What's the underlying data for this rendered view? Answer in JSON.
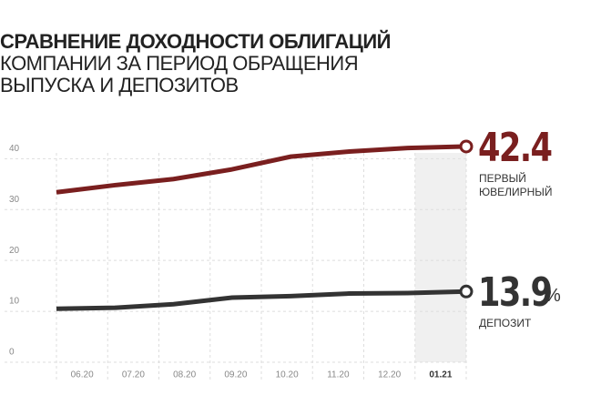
{
  "chart_data": {
    "type": "line",
    "title": "СРАВНЕНИЕ ДОХОДНОСТИ ОБЛИГАЦИЙ",
    "subtitle": [
      "КОМПАНИИ ЗА ПЕРИОД ОБРАЩЕНИЯ",
      "ВЫПУСКА И ДЕПОЗИТОВ"
    ],
    "categories": [
      "06.20",
      "07.20",
      "08.20",
      "09.20",
      "10.20",
      "11.20",
      "12.20",
      "01.21"
    ],
    "series": [
      {
        "name": "ПЕРВЫЙ ЮВЕЛИРНЫЙ",
        "color": "#7a1f1f",
        "values": [
          33.4,
          34.8,
          36,
          37.9,
          40.4,
          41.4,
          42.1,
          42.4
        ]
      },
      {
        "name": "ДЕПОЗИТ",
        "color": "#333333",
        "values": [
          10.5,
          10.7,
          11.4,
          12.7,
          13,
          13.5,
          13.6,
          13.9
        ],
        "unit": "%"
      }
    ],
    "ylim": [
      0,
      44
    ],
    "yticks": [
      0,
      10,
      20,
      30,
      40
    ],
    "grid": true,
    "highlight_index": 7
  }
}
